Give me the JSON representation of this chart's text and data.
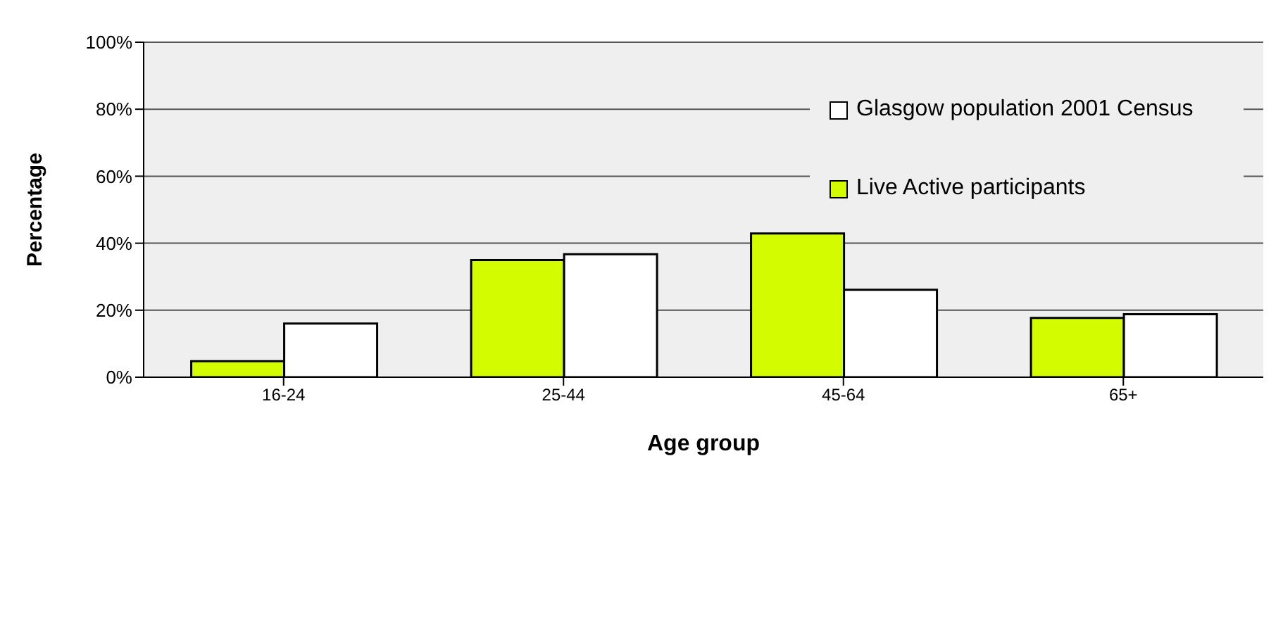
{
  "chart_data": {
    "type": "bar",
    "xlabel": "Age group",
    "ylabel": "Percentage",
    "categories": [
      "16-24",
      "25-44",
      "45-64",
      "65+"
    ],
    "series": [
      {
        "name": "Live Active participants",
        "color": "#d4fc00",
        "values": [
          4.8,
          35,
          42.9,
          17.7
        ]
      },
      {
        "name": "Glasgow  population 2001 Census",
        "color": "#ffffff",
        "values": [
          16,
          36.7,
          26.1,
          18.8
        ]
      }
    ],
    "ylim": [
      0,
      100
    ],
    "yticks": [
      {
        "value": 0,
        "label": "0%"
      },
      {
        "value": 20,
        "label": "20%"
      },
      {
        "value": 40,
        "label": "40%"
      },
      {
        "value": 60,
        "label": "60%"
      },
      {
        "value": 80,
        "label": "80%"
      },
      {
        "value": 100,
        "label": "100%"
      }
    ],
    "grid": "y",
    "legend": "top right"
  }
}
